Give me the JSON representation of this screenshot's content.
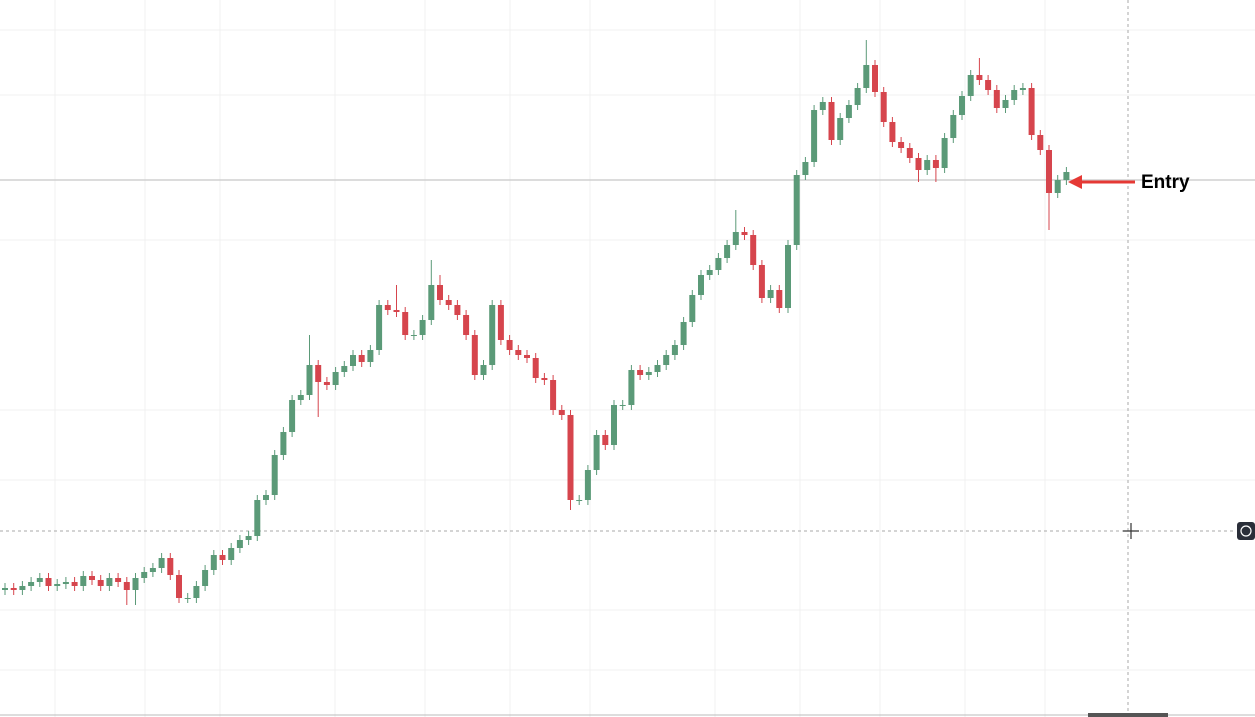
{
  "chart_data": {
    "type": "candlestick",
    "annotation": "Entry",
    "ylim": [
      0,
      717
    ],
    "up_color": "#5b9a78",
    "down_color": "#d6454d",
    "entry_level": 537,
    "open": [
      127,
      129,
      127,
      131,
      135,
      139,
      131,
      133,
      135,
      131,
      141,
      137,
      131,
      139,
      135,
      127,
      139,
      145,
      149,
      159,
      142,
      119,
      119,
      131,
      147,
      162,
      157,
      169,
      177,
      181,
      217,
      222,
      262,
      285,
      317,
      322,
      352,
      335,
      332,
      345,
      351,
      362,
      355,
      367,
      412,
      407,
      405,
      382,
      382,
      397,
      432,
      417,
      412,
      402,
      382,
      342,
      352,
      412,
      377,
      367,
      362,
      359,
      339,
      337,
      307,
      302,
      217,
      217,
      247,
      282,
      272,
      312,
      312,
      347,
      342,
      345,
      352,
      362,
      372,
      395,
      422,
      442,
      447,
      459,
      472,
      485,
      482,
      452,
      419,
      427,
      409,
      472,
      542,
      555,
      607,
      615,
      577,
      599,
      612,
      629,
      652,
      625,
      595,
      575,
      569,
      559,
      547,
      557,
      549,
      579,
      602,
      621,
      642,
      637,
      627,
      609,
      617,
      627,
      629,
      582,
      567,
      524,
      537
    ],
    "high": [
      134,
      134,
      136,
      140,
      144,
      144,
      138,
      140,
      140,
      146,
      146,
      142,
      144,
      144,
      140,
      144,
      150,
      154,
      164,
      164,
      147,
      124,
      136,
      152,
      167,
      167,
      174,
      182,
      186,
      222,
      227,
      267,
      290,
      322,
      327,
      382,
      357,
      340,
      350,
      356,
      367,
      367,
      372,
      417,
      417,
      432,
      410,
      387,
      402,
      457,
      442,
      422,
      417,
      407,
      387,
      357,
      417,
      417,
      382,
      372,
      367,
      364,
      344,
      342,
      312,
      307,
      222,
      252,
      287,
      287,
      317,
      317,
      352,
      352,
      350,
      357,
      367,
      377,
      400,
      427,
      447,
      452,
      464,
      477,
      507,
      490,
      487,
      457,
      432,
      432,
      477,
      547,
      560,
      612,
      620,
      620,
      604,
      617,
      634,
      677,
      657,
      630,
      600,
      580,
      574,
      564,
      562,
      562,
      584,
      607,
      626,
      647,
      659,
      642,
      632,
      622,
      632,
      634,
      634,
      587,
      572,
      542,
      550
    ],
    "low": [
      122,
      122,
      122,
      126,
      130,
      126,
      126,
      128,
      126,
      126,
      132,
      126,
      126,
      130,
      112,
      112,
      134,
      140,
      144,
      137,
      114,
      114,
      114,
      126,
      142,
      152,
      152,
      164,
      172,
      176,
      212,
      217,
      257,
      280,
      312,
      317,
      300,
      327,
      327,
      340,
      346,
      350,
      350,
      362,
      402,
      400,
      377,
      377,
      377,
      392,
      412,
      407,
      397,
      377,
      337,
      337,
      347,
      372,
      362,
      357,
      354,
      334,
      332,
      302,
      297,
      207,
      212,
      212,
      242,
      267,
      267,
      307,
      307,
      337,
      337,
      340,
      347,
      357,
      367,
      390,
      417,
      437,
      442,
      454,
      467,
      477,
      447,
      414,
      414,
      404,
      404,
      467,
      537,
      550,
      602,
      572,
      572,
      594,
      607,
      624,
      620,
      590,
      570,
      564,
      554,
      535,
      542,
      535,
      544,
      574,
      597,
      616,
      632,
      622,
      604,
      604,
      612,
      622,
      577,
      562,
      487,
      519,
      532
    ],
    "close": [
      129,
      127,
      131,
      135,
      139,
      131,
      133,
      135,
      131,
      141,
      137,
      131,
      139,
      135,
      127,
      139,
      145,
      149,
      159,
      142,
      119,
      119,
      131,
      147,
      162,
      157,
      169,
      177,
      181,
      217,
      222,
      262,
      285,
      317,
      322,
      352,
      335,
      332,
      345,
      351,
      362,
      355,
      367,
      412,
      407,
      405,
      382,
      382,
      397,
      432,
      417,
      412,
      402,
      382,
      342,
      352,
      412,
      377,
      367,
      362,
      359,
      339,
      337,
      307,
      302,
      217,
      217,
      247,
      282,
      272,
      312,
      312,
      347,
      342,
      345,
      352,
      362,
      372,
      395,
      422,
      442,
      447,
      459,
      472,
      485,
      482,
      452,
      419,
      427,
      409,
      472,
      542,
      555,
      607,
      615,
      577,
      599,
      612,
      629,
      652,
      625,
      595,
      575,
      569,
      559,
      547,
      557,
      549,
      579,
      602,
      621,
      642,
      637,
      627,
      609,
      617,
      627,
      629,
      582,
      567,
      524,
      537,
      545
    ]
  }
}
